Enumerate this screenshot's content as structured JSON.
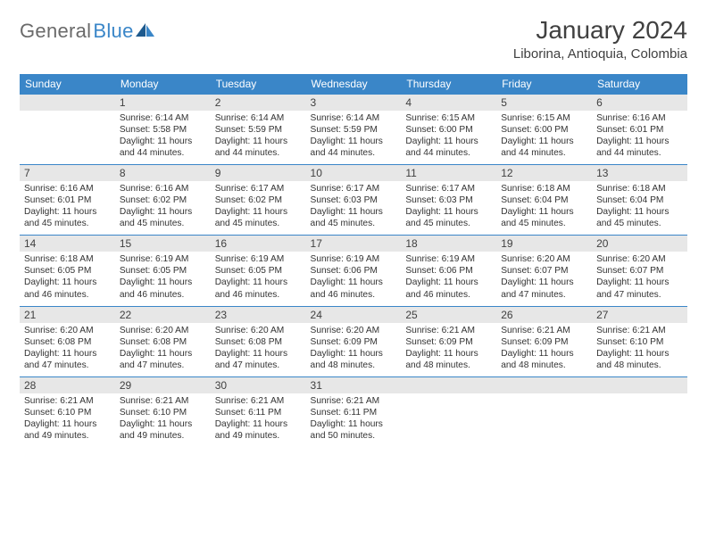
{
  "brand": {
    "part1": "General",
    "part2": "Blue",
    "accent_color": "#3a86c8"
  },
  "title": "January 2024",
  "location": "Liborina, Antioquia, Colombia",
  "weekdays": [
    "Sunday",
    "Monday",
    "Tuesday",
    "Wednesday",
    "Thursday",
    "Friday",
    "Saturday"
  ],
  "colors": {
    "header_bg": "#3a86c8",
    "header_text": "#ffffff",
    "daynum_bg": "#e7e7e7",
    "row_border": "#3a86c8",
    "body_text": "#333333"
  },
  "typography": {
    "title_fontsize": 28,
    "location_fontsize": 15,
    "weekday_fontsize": 12,
    "daynum_fontsize": 12,
    "body_fontsize": 10.2
  },
  "layout": {
    "columns": 7,
    "rows": 5,
    "first_weekday_offset": 1
  },
  "days": [
    {
      "n": "1",
      "sunrise": "6:14 AM",
      "sunset": "5:58 PM",
      "daylight": "11 hours and 44 minutes."
    },
    {
      "n": "2",
      "sunrise": "6:14 AM",
      "sunset": "5:59 PM",
      "daylight": "11 hours and 44 minutes."
    },
    {
      "n": "3",
      "sunrise": "6:14 AM",
      "sunset": "5:59 PM",
      "daylight": "11 hours and 44 minutes."
    },
    {
      "n": "4",
      "sunrise": "6:15 AM",
      "sunset": "6:00 PM",
      "daylight": "11 hours and 44 minutes."
    },
    {
      "n": "5",
      "sunrise": "6:15 AM",
      "sunset": "6:00 PM",
      "daylight": "11 hours and 44 minutes."
    },
    {
      "n": "6",
      "sunrise": "6:16 AM",
      "sunset": "6:01 PM",
      "daylight": "11 hours and 44 minutes."
    },
    {
      "n": "7",
      "sunrise": "6:16 AM",
      "sunset": "6:01 PM",
      "daylight": "11 hours and 45 minutes."
    },
    {
      "n": "8",
      "sunrise": "6:16 AM",
      "sunset": "6:02 PM",
      "daylight": "11 hours and 45 minutes."
    },
    {
      "n": "9",
      "sunrise": "6:17 AM",
      "sunset": "6:02 PM",
      "daylight": "11 hours and 45 minutes."
    },
    {
      "n": "10",
      "sunrise": "6:17 AM",
      "sunset": "6:03 PM",
      "daylight": "11 hours and 45 minutes."
    },
    {
      "n": "11",
      "sunrise": "6:17 AM",
      "sunset": "6:03 PM",
      "daylight": "11 hours and 45 minutes."
    },
    {
      "n": "12",
      "sunrise": "6:18 AM",
      "sunset": "6:04 PM",
      "daylight": "11 hours and 45 minutes."
    },
    {
      "n": "13",
      "sunrise": "6:18 AM",
      "sunset": "6:04 PM",
      "daylight": "11 hours and 45 minutes."
    },
    {
      "n": "14",
      "sunrise": "6:18 AM",
      "sunset": "6:05 PM",
      "daylight": "11 hours and 46 minutes."
    },
    {
      "n": "15",
      "sunrise": "6:19 AM",
      "sunset": "6:05 PM",
      "daylight": "11 hours and 46 minutes."
    },
    {
      "n": "16",
      "sunrise": "6:19 AM",
      "sunset": "6:05 PM",
      "daylight": "11 hours and 46 minutes."
    },
    {
      "n": "17",
      "sunrise": "6:19 AM",
      "sunset": "6:06 PM",
      "daylight": "11 hours and 46 minutes."
    },
    {
      "n": "18",
      "sunrise": "6:19 AM",
      "sunset": "6:06 PM",
      "daylight": "11 hours and 46 minutes."
    },
    {
      "n": "19",
      "sunrise": "6:20 AM",
      "sunset": "6:07 PM",
      "daylight": "11 hours and 47 minutes."
    },
    {
      "n": "20",
      "sunrise": "6:20 AM",
      "sunset": "6:07 PM",
      "daylight": "11 hours and 47 minutes."
    },
    {
      "n": "21",
      "sunrise": "6:20 AM",
      "sunset": "6:08 PM",
      "daylight": "11 hours and 47 minutes."
    },
    {
      "n": "22",
      "sunrise": "6:20 AM",
      "sunset": "6:08 PM",
      "daylight": "11 hours and 47 minutes."
    },
    {
      "n": "23",
      "sunrise": "6:20 AM",
      "sunset": "6:08 PM",
      "daylight": "11 hours and 47 minutes."
    },
    {
      "n": "24",
      "sunrise": "6:20 AM",
      "sunset": "6:09 PM",
      "daylight": "11 hours and 48 minutes."
    },
    {
      "n": "25",
      "sunrise": "6:21 AM",
      "sunset": "6:09 PM",
      "daylight": "11 hours and 48 minutes."
    },
    {
      "n": "26",
      "sunrise": "6:21 AM",
      "sunset": "6:09 PM",
      "daylight": "11 hours and 48 minutes."
    },
    {
      "n": "27",
      "sunrise": "6:21 AM",
      "sunset": "6:10 PM",
      "daylight": "11 hours and 48 minutes."
    },
    {
      "n": "28",
      "sunrise": "6:21 AM",
      "sunset": "6:10 PM",
      "daylight": "11 hours and 49 minutes."
    },
    {
      "n": "29",
      "sunrise": "6:21 AM",
      "sunset": "6:10 PM",
      "daylight": "11 hours and 49 minutes."
    },
    {
      "n": "30",
      "sunrise": "6:21 AM",
      "sunset": "6:11 PM",
      "daylight": "11 hours and 49 minutes."
    },
    {
      "n": "31",
      "sunrise": "6:21 AM",
      "sunset": "6:11 PM",
      "daylight": "11 hours and 50 minutes."
    }
  ],
  "labels": {
    "sunrise": "Sunrise:",
    "sunset": "Sunset:",
    "daylight": "Daylight:"
  }
}
